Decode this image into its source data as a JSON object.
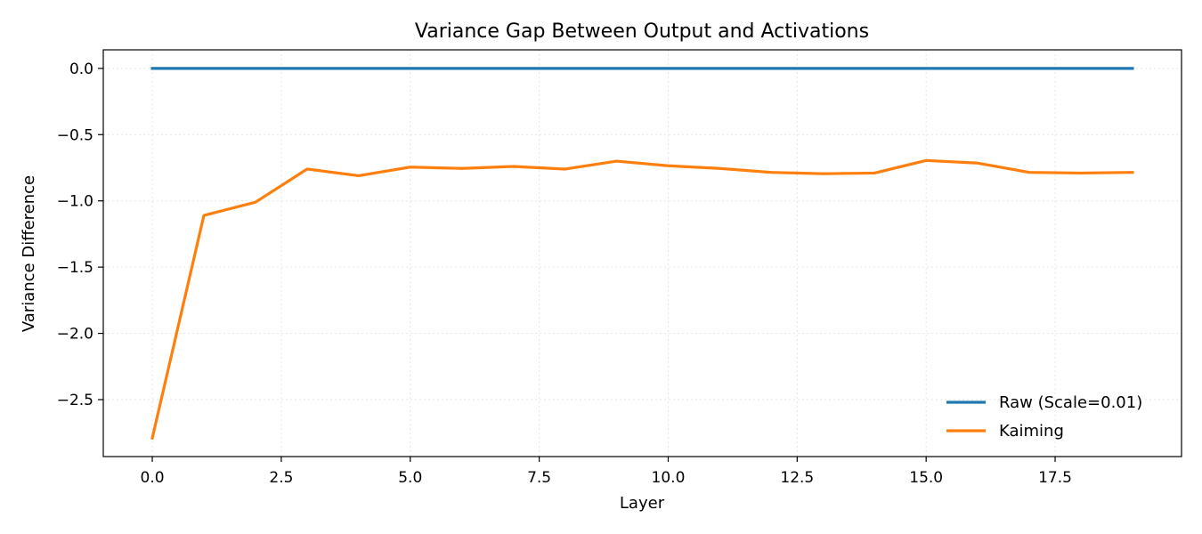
{
  "chart_data": {
    "type": "line",
    "title": "Variance Gap Between Output and Activations",
    "xlabel": "Layer",
    "ylabel": "Variance Difference",
    "xlim": [
      -0.95,
      19.95
    ],
    "ylim": [
      -2.93,
      0.14
    ],
    "xticks": [
      0.0,
      2.5,
      5.0,
      7.5,
      10.0,
      12.5,
      15.0,
      17.5
    ],
    "xtick_labels": [
      "0.0",
      "2.5",
      "5.0",
      "7.5",
      "10.0",
      "12.5",
      "15.0",
      "17.5"
    ],
    "yticks": [
      0.0,
      -0.5,
      -1.0,
      -1.5,
      -2.0,
      -2.5
    ],
    "ytick_labels": [
      "0.0",
      "−0.5",
      "−1.0",
      "−1.5",
      "−2.0",
      "−2.5"
    ],
    "grid": true,
    "legend_position": "lower-right",
    "x": [
      0,
      1,
      2,
      3,
      4,
      5,
      6,
      7,
      8,
      9,
      10,
      11,
      12,
      13,
      14,
      15,
      16,
      17,
      18,
      19
    ],
    "series": [
      {
        "name": "Raw (Scale=0.01)",
        "color": "#1f77b4",
        "values": [
          0,
          0,
          0,
          0,
          0,
          0,
          0,
          0,
          0,
          0,
          0,
          0,
          0,
          0,
          0,
          0,
          0,
          0,
          0,
          0
        ]
      },
      {
        "name": "Kaiming",
        "color": "#ff7f0e",
        "values": [
          -2.79,
          -1.11,
          -1.01,
          -0.76,
          -0.81,
          -0.745,
          -0.755,
          -0.74,
          -0.76,
          -0.7,
          -0.735,
          -0.755,
          -0.785,
          -0.795,
          -0.79,
          -0.695,
          -0.715,
          -0.785,
          -0.79,
          -0.785
        ]
      }
    ]
  }
}
